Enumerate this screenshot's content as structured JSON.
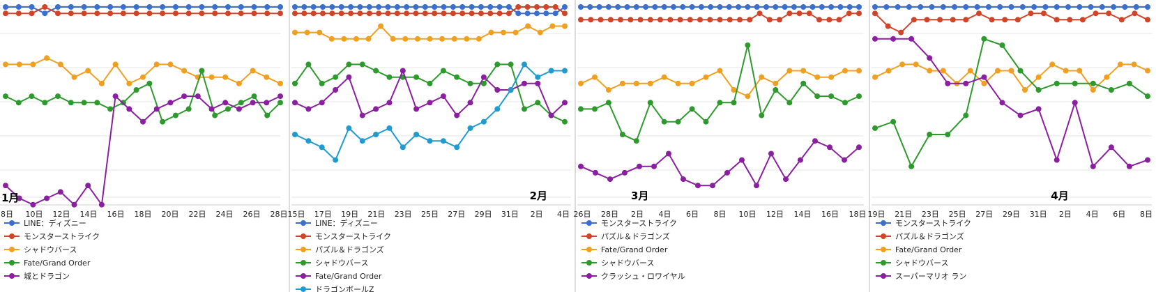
{
  "chart_data": [
    {
      "type": "line",
      "month_label": "1月",
      "x_ticks": [
        "8日",
        "10日",
        "12日",
        "14日",
        "16日",
        "18日",
        "20日",
        "22日",
        "24日",
        "26日",
        "28日"
      ],
      "series": [
        {
          "name": "LINE：ディズニー",
          "color": "#3a6fd0",
          "ranks": [
            1,
            1,
            1,
            2,
            1,
            1,
            1,
            1,
            1,
            1,
            1,
            1,
            1,
            1,
            1,
            1,
            1,
            1,
            1,
            1,
            1,
            1
          ]
        },
        {
          "name": "モンスターストライク",
          "color": "#d0442a",
          "ranks": [
            2,
            2,
            2,
            1,
            2,
            2,
            2,
            2,
            2,
            2,
            2,
            2,
            2,
            2,
            2,
            2,
            2,
            2,
            2,
            2,
            2,
            2
          ]
        },
        {
          "name": "シャドウバース",
          "color": "#f0a020",
          "ranks": [
            10,
            10,
            10,
            9,
            10,
            12,
            11,
            13,
            10,
            13,
            12,
            10,
            10,
            11,
            12,
            12,
            12,
            13,
            11,
            12,
            13
          ]
        },
        {
          "name": "Fate/Grand Order",
          "color": "#2e9a2e",
          "ranks": [
            15,
            16,
            15,
            16,
            15,
            16,
            16,
            16,
            17,
            16,
            14,
            13,
            19,
            18,
            17,
            11,
            18,
            17,
            16,
            15,
            18,
            16
          ]
        },
        {
          "name": "城とドラゴン",
          "color": "#8a1fa0",
          "ranks": [
            29,
            31,
            32,
            31,
            30,
            32,
            29,
            32,
            15,
            17,
            19,
            17,
            16,
            15,
            15,
            17,
            16,
            17,
            16,
            16,
            15
          ]
        }
      ]
    },
    {
      "type": "line",
      "month_label": "2月",
      "x_ticks": [
        "15日",
        "17日",
        "19日",
        "21日",
        "23日",
        "25日",
        "27日",
        "29日",
        "31日",
        "2日",
        "4日"
      ],
      "series": [
        {
          "name": "LINE：ディズニー",
          "color": "#3a6fd0",
          "ranks": [
            1,
            1,
            1,
            1,
            1,
            1,
            1,
            1,
            1,
            1,
            1,
            1,
            1,
            1,
            1,
            1,
            1,
            1,
            1,
            1,
            1,
            1,
            1,
            1,
            2,
            2,
            2,
            2,
            2,
            1
          ]
        },
        {
          "name": "モンスターストライク",
          "color": "#d0442a",
          "ranks": [
            2,
            2,
            2,
            2,
            2,
            2,
            2,
            2,
            2,
            2,
            2,
            2,
            2,
            2,
            2,
            2,
            2,
            2,
            2,
            2,
            2,
            2,
            2,
            2,
            1,
            1,
            1,
            1,
            1,
            2
          ]
        },
        {
          "name": "パズル＆ドラゴンズ",
          "color": "#f0a020",
          "ranks": [
            5,
            5,
            5,
            6,
            6,
            6,
            6,
            4,
            6,
            6,
            6,
            6,
            6,
            6,
            6,
            6,
            5,
            5,
            5,
            4,
            5,
            4,
            4
          ]
        },
        {
          "name": "シャドウバース",
          "color": "#2e9a2e",
          "ranks": [
            13,
            10,
            13,
            12,
            10,
            10,
            11,
            12,
            12,
            12,
            13,
            11,
            12,
            13,
            13,
            10,
            10,
            17,
            16,
            18,
            19
          ]
        },
        {
          "name": "Fate/Grand Order",
          "color": "#8a1fa0",
          "ranks": [
            16,
            17,
            16,
            14,
            12,
            18,
            17,
            16,
            11,
            17,
            16,
            15,
            18,
            16,
            12,
            14,
            14,
            13,
            13,
            18,
            16
          ]
        },
        {
          "name": "ドラゴンボールZ",
          "color": "#1f9bd0",
          "ranks": [
            21,
            22,
            23,
            25,
            20,
            22,
            21,
            20,
            23,
            21,
            22,
            22,
            23,
            20,
            19,
            17,
            14,
            10,
            12,
            11,
            11
          ]
        }
      ]
    },
    {
      "type": "line",
      "month_label": "3月",
      "x_ticks": [
        "26日",
        "28日",
        "2日",
        "4日",
        "6日",
        "8日",
        "10日",
        "12日",
        "14日",
        "16日",
        "18日"
      ],
      "series": [
        {
          "name": "モンスターストライク",
          "color": "#3a6fd0",
          "ranks": [
            1,
            1,
            1,
            1,
            1,
            1,
            1,
            1,
            1,
            1,
            1,
            1,
            1,
            1,
            1,
            1,
            1,
            1,
            1,
            1,
            1,
            1,
            1,
            1,
            1,
            1,
            1,
            1,
            1,
            1,
            1
          ]
        },
        {
          "name": "パズル＆ドラゴンズ",
          "color": "#d0442a",
          "ranks": [
            3,
            3,
            3,
            3,
            3,
            3,
            3,
            3,
            3,
            3,
            3,
            3,
            3,
            3,
            3,
            3,
            3,
            3,
            2,
            3,
            3,
            2,
            2,
            2,
            3,
            3,
            3,
            2,
            2
          ]
        },
        {
          "name": "Fate/Grand Order",
          "color": "#f0a020",
          "ranks": [
            13,
            12,
            14,
            13,
            13,
            13,
            12,
            13,
            13,
            12,
            11,
            14,
            15,
            12,
            13,
            11,
            11,
            12,
            12,
            11,
            11
          ]
        },
        {
          "name": "シャドウバース",
          "color": "#2e9a2e",
          "ranks": [
            17,
            17,
            16,
            21,
            22,
            16,
            19,
            19,
            17,
            19,
            16,
            16,
            7,
            18,
            14,
            16,
            13,
            15,
            15,
            16,
            15
          ]
        },
        {
          "name": "クラッシュ・ロワイヤル",
          "color": "#8a1fa0",
          "ranks": [
            26,
            27,
            28,
            27,
            26,
            26,
            24,
            28,
            29,
            29,
            27,
            25,
            29,
            24,
            28,
            25,
            22,
            23,
            25,
            23
          ]
        }
      ]
    },
    {
      "type": "line",
      "month_label": "4月",
      "x_ticks": [
        "19日",
        "21日",
        "23日",
        "25日",
        "27日",
        "29日",
        "31日",
        "2日",
        "4日",
        "6日",
        "8日"
      ],
      "series": [
        {
          "name": "モンスターストライク",
          "color": "#3a6fd0",
          "ranks": [
            1,
            1,
            1,
            1,
            1,
            1,
            1,
            1,
            1,
            1,
            1,
            1,
            1,
            1,
            1,
            1,
            1,
            1,
            1,
            1,
            1,
            1,
            1,
            1,
            1
          ]
        },
        {
          "name": "パズル＆ドラゴンズ",
          "color": "#d0442a",
          "ranks": [
            2,
            4,
            5,
            3,
            3,
            3,
            3,
            3,
            2,
            3,
            3,
            3,
            2,
            2,
            3,
            3,
            3,
            2,
            2,
            3,
            2,
            3
          ]
        },
        {
          "name": "Fate/Grand Order",
          "color": "#f0a020",
          "ranks": [
            12,
            11,
            10,
            10,
            11,
            11,
            13,
            11,
            13,
            11,
            11,
            14,
            12,
            10,
            11,
            11,
            14,
            12,
            10,
            10,
            11
          ]
        },
        {
          "name": "シャドウバース",
          "color": "#2e9a2e",
          "ranks": [
            20,
            19,
            26,
            21,
            21,
            18,
            6,
            7,
            11,
            14,
            13,
            13,
            13,
            14,
            13,
            15
          ]
        },
        {
          "name": "スーパーマリオ ラン",
          "color": "#8a1fa0",
          "ranks": [
            6,
            6,
            6,
            9,
            13,
            13,
            12,
            16,
            18,
            17,
            25,
            16,
            26,
            23,
            26,
            25
          ]
        }
      ]
    }
  ]
}
